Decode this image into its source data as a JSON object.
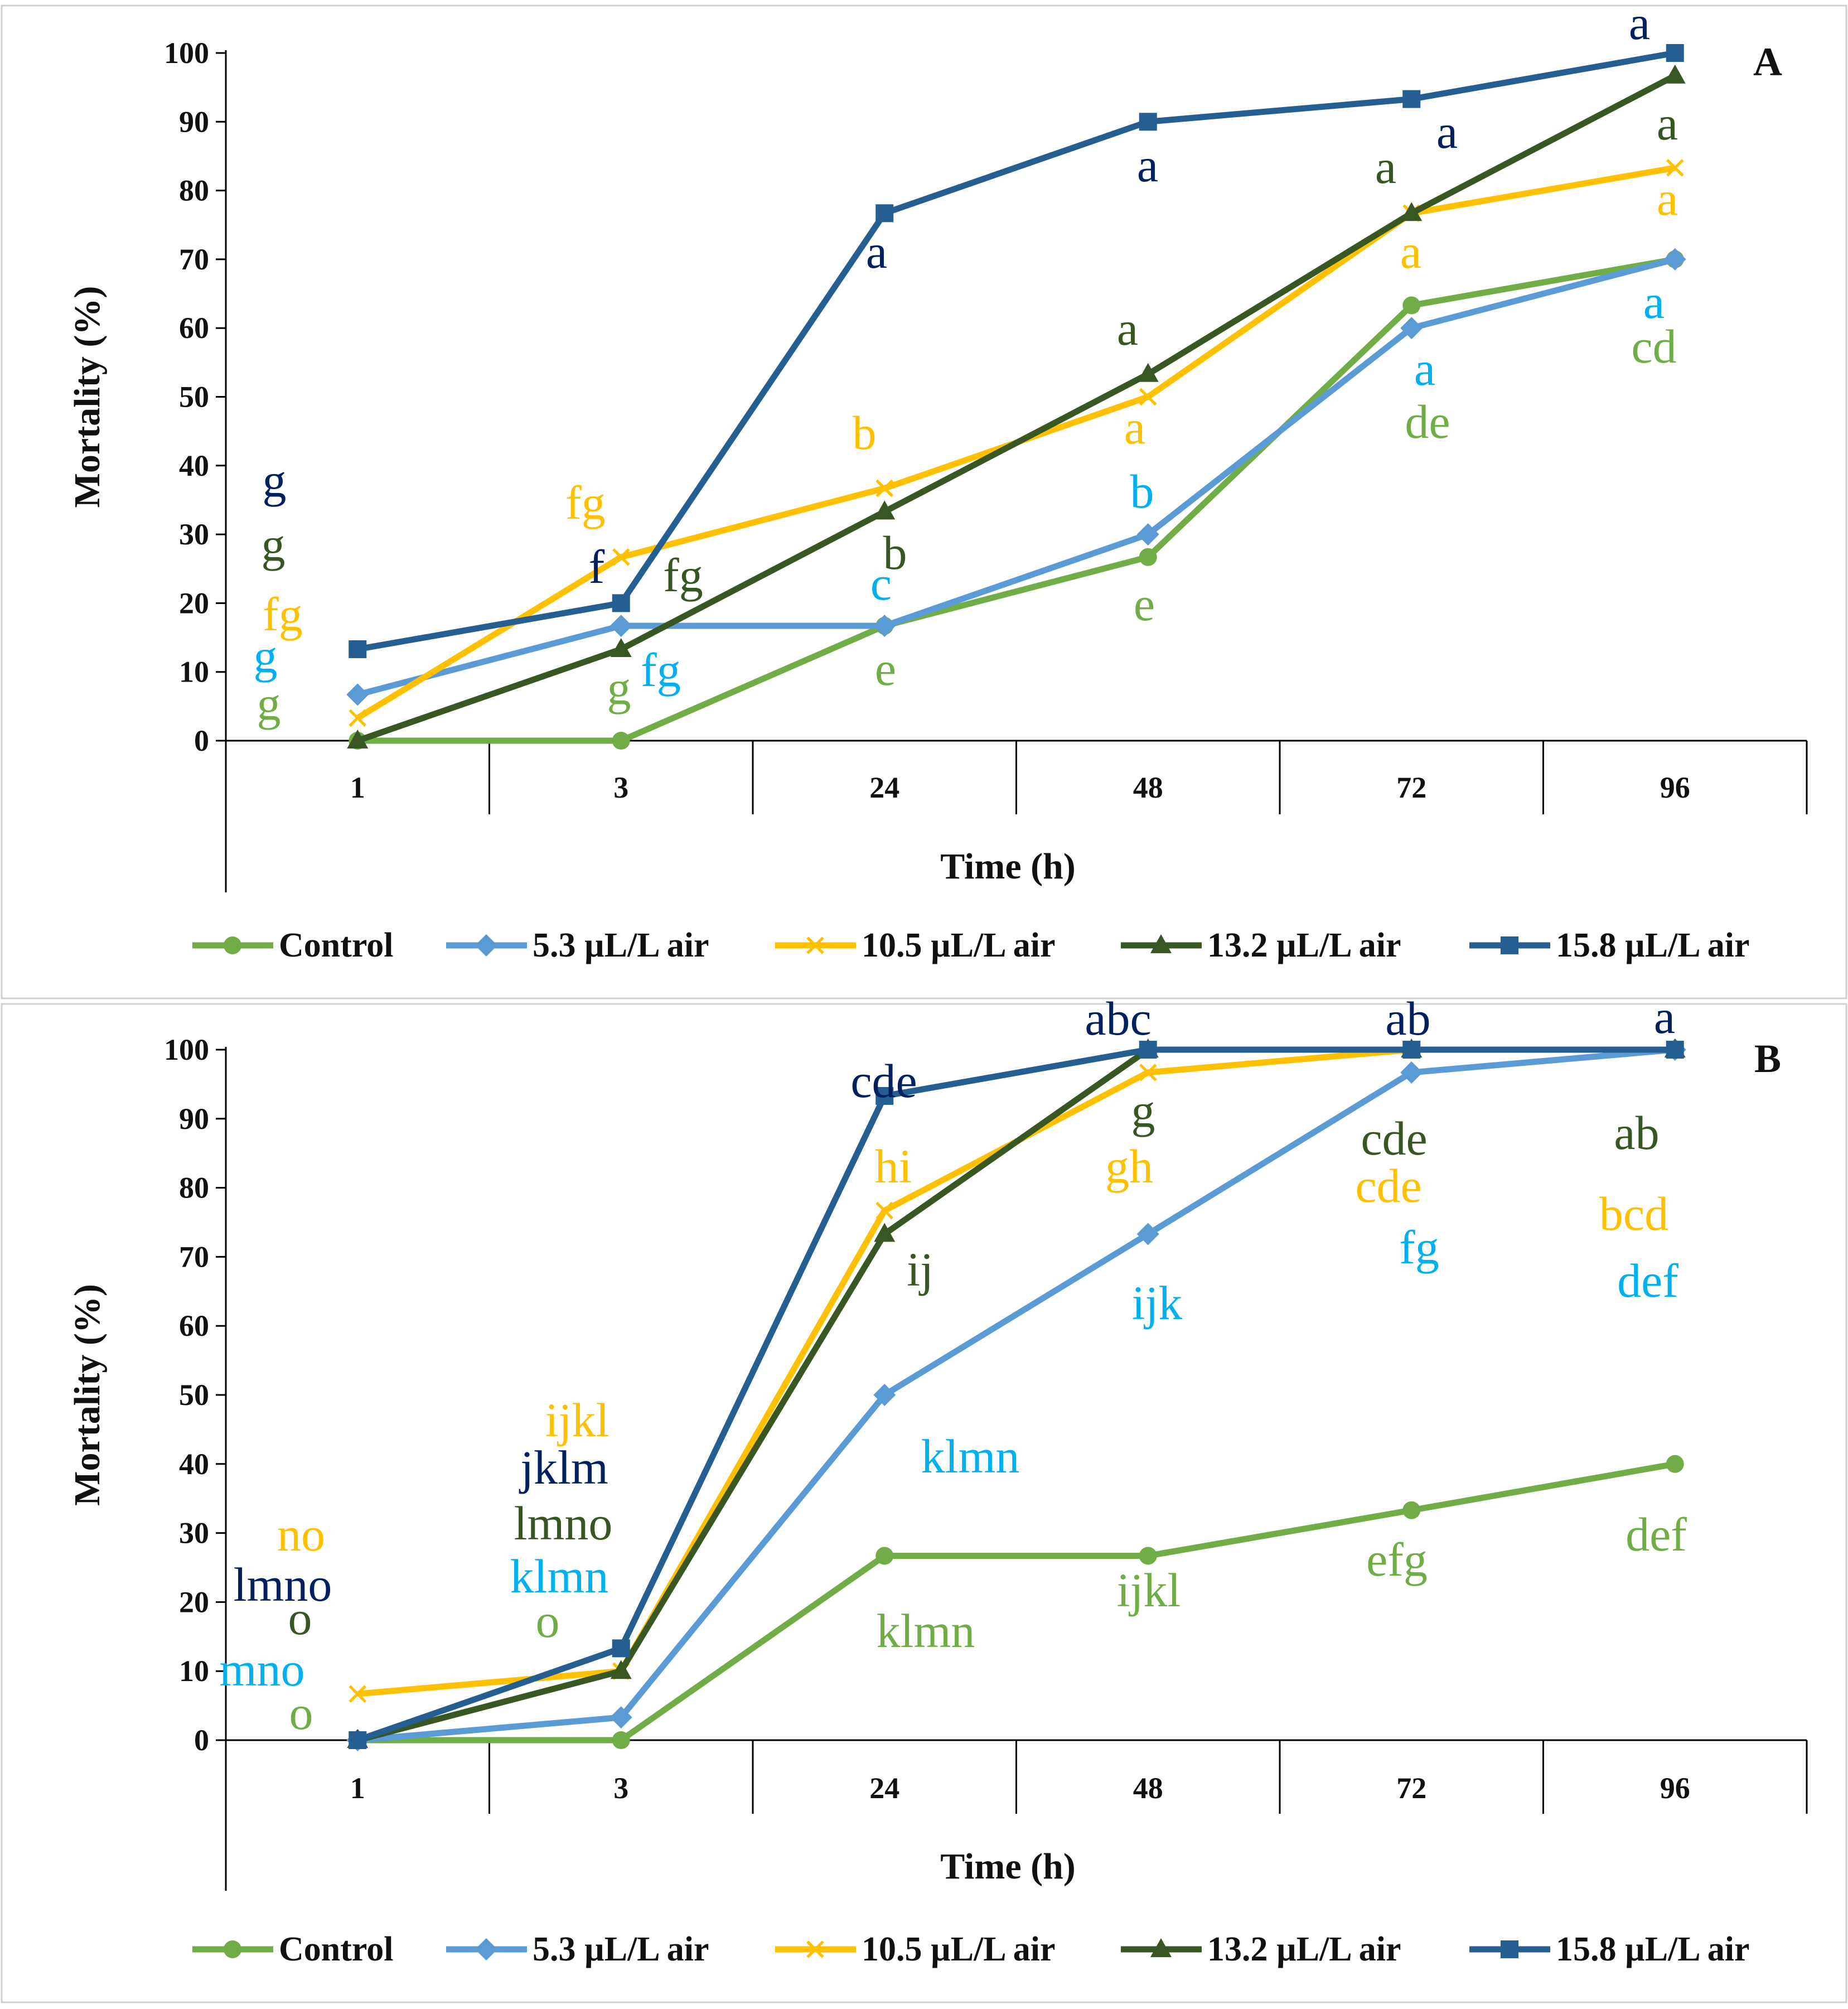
{
  "colors": {
    "Control": "#70AD47",
    "5.3 µL/L air": "#5B9BD5",
    "10.5 µL/L air": "#FFC000",
    "13.2 µL/L air": "#385723",
    "15.8 µL/L air": "#255E91",
    "sig_control": "#70AD47",
    "sig_5.3": "#00B0F0",
    "sig_10.5": "#FFC000",
    "sig_13.2": "#375623",
    "sig_15.8": "#002060"
  },
  "chart_data": [
    {
      "panel": "A",
      "type": "line",
      "xlabel": "Time (h)",
      "ylabel": "Mortality (%)",
      "ylim": [
        0,
        100
      ],
      "yticks": [
        0,
        10,
        20,
        30,
        40,
        50,
        60,
        70,
        80,
        90,
        100
      ],
      "categories": [
        "1",
        "3",
        "24",
        "48",
        "72",
        "96"
      ],
      "legend_position": "bottom",
      "series": [
        {
          "name": "Control",
          "marker": "circle",
          "values": [
            0,
            0,
            16.7,
            26.7,
            63.3,
            70
          ],
          "labels": [
            "g",
            "g",
            "e",
            "e",
            "de",
            "cd"
          ]
        },
        {
          "name": "5.3 µL/L air",
          "marker": "diamond",
          "values": [
            6.7,
            16.7,
            16.7,
            30,
            60,
            70
          ],
          "labels": [
            "g",
            "fg",
            "c",
            "b",
            "a",
            "a"
          ]
        },
        {
          "name": "10.5 µL/L air",
          "marker": "x",
          "values": [
            3.3,
            26.7,
            36.7,
            50,
            76.7,
            83.3
          ],
          "labels": [
            "fg",
            "fg",
            "b",
            "a",
            "a",
            "a"
          ]
        },
        {
          "name": "13.2 µL/L air",
          "marker": "triangle",
          "values": [
            0,
            13.3,
            33.3,
            53.3,
            76.7,
            96.7
          ],
          "labels": [
            "g",
            "fg",
            "b",
            "a",
            "a",
            "a"
          ]
        },
        {
          "name": "15.8 µL/L air",
          "marker": "square",
          "values": [
            13.3,
            20,
            76.7,
            90,
            93.3,
            100
          ],
          "labels": [
            "g",
            "f",
            "a",
            "a",
            "a",
            "a"
          ]
        }
      ]
    },
    {
      "panel": "B",
      "type": "line",
      "xlabel": "Time (h)",
      "ylabel": "Mortality (%)",
      "ylim": [
        0,
        100
      ],
      "yticks": [
        0,
        10,
        20,
        30,
        40,
        50,
        60,
        70,
        80,
        90,
        100
      ],
      "categories": [
        "1",
        "3",
        "24",
        "48",
        "72",
        "96"
      ],
      "legend_position": "bottom",
      "series": [
        {
          "name": "Control",
          "marker": "circle",
          "values": [
            0,
            0,
            26.7,
            26.7,
            33.3,
            40
          ],
          "labels": [
            "o",
            "o",
            "klmn",
            "ijkl",
            "efg",
            "def"
          ]
        },
        {
          "name": "5.3 µL/L air",
          "marker": "diamond",
          "values": [
            0,
            3.3,
            50,
            73.3,
            96.7,
            100
          ],
          "labels": [
            "mno",
            "klmn",
            "klmn",
            "ijk",
            "fg",
            "def"
          ]
        },
        {
          "name": "10.5 µL/L air",
          "marker": "x",
          "values": [
            6.7,
            10,
            76.7,
            96.7,
            100,
            100
          ],
          "labels": [
            "no",
            "ijkl",
            "hi",
            "gh",
            "cde",
            "bcd"
          ]
        },
        {
          "name": "13.2 µL/L air",
          "marker": "triangle",
          "values": [
            0,
            10,
            73.3,
            100,
            100,
            100
          ],
          "labels": [
            "o",
            "lmno",
            "ij",
            "g",
            "cde",
            "ab"
          ]
        },
        {
          "name": "15.8 µL/L air",
          "marker": "square",
          "values": [
            0,
            13.3,
            93.3,
            100,
            100,
            100
          ],
          "labels": [
            "lmno",
            "jklm",
            "cde",
            "abc",
            "ab",
            "a"
          ]
        }
      ]
    }
  ]
}
